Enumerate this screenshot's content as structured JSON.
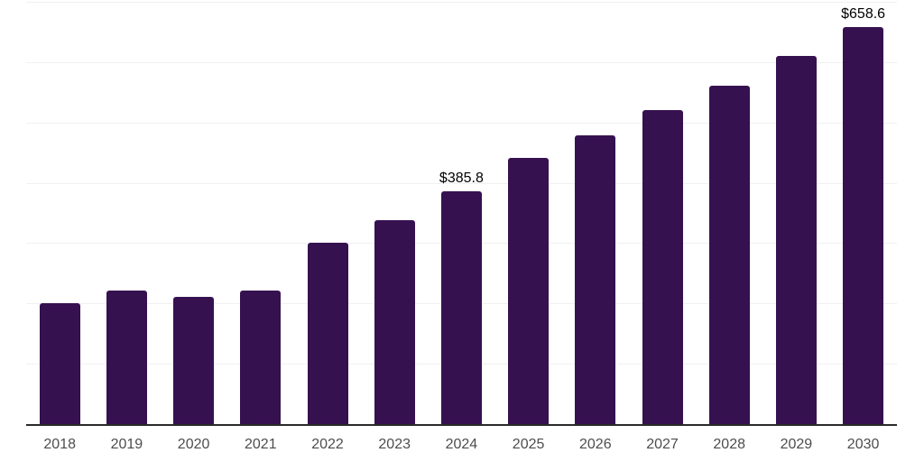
{
  "chart_data": {
    "type": "bar",
    "title": "",
    "xlabel": "",
    "ylabel": "",
    "categories": [
      "2018",
      "2019",
      "2020",
      "2021",
      "2022",
      "2023",
      "2024",
      "2025",
      "2026",
      "2027",
      "2028",
      "2029",
      "2030"
    ],
    "values": [
      200,
      221,
      211,
      222,
      300,
      338,
      385.8,
      442,
      478,
      520,
      561,
      610,
      658.6
    ],
    "data_labels": [
      "",
      "",
      "",
      "",
      "",
      "",
      "$385.8",
      "",
      "",
      "",
      "",
      "",
      "$658.6"
    ],
    "ylim": [
      0,
      700
    ],
    "gridline_step": 100,
    "grid": true,
    "legend_position": "none",
    "value_prefix": "$"
  },
  "colors": {
    "background": "#ffffff",
    "bar": "#361150",
    "gridline": "#f0f0f0",
    "axis_line": "#2a2a2a",
    "tick_label": "#4d4d4d",
    "data_label": "#000000"
  }
}
